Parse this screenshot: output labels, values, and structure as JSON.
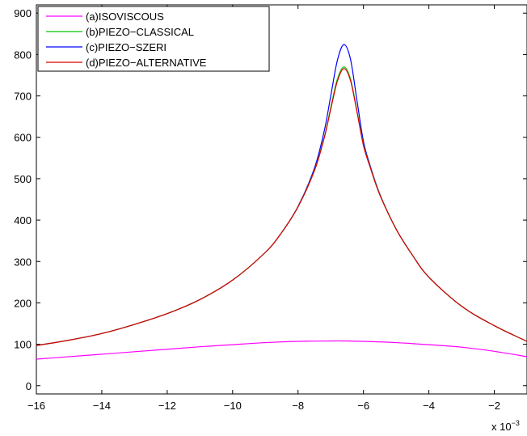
{
  "chart_data": {
    "type": "line",
    "xlim": [
      -16,
      -1
    ],
    "ylim": [
      -20,
      920
    ],
    "x_ticks": [
      -16,
      -14,
      -12,
      -10,
      -8,
      -6,
      -4,
      -2
    ],
    "y_ticks": [
      0,
      100,
      200,
      300,
      400,
      500,
      600,
      700,
      800,
      900
    ],
    "x_exponent_base": "x 10",
    "x_exponent_power": "−3",
    "grid": false,
    "legend_position": "top-left",
    "series": [
      {
        "name": "(a)ISOVISCOUS",
        "color": "#ff00ff",
        "x": [
          -16,
          -15,
          -14,
          -13,
          -12,
          -11,
          -10,
          -9,
          -8,
          -7,
          -6.6,
          -6,
          -5,
          -4,
          -3,
          -2,
          -1
        ],
        "y": [
          64,
          70,
          76,
          82,
          88,
          94,
          99,
          104,
          107,
          108,
          108,
          107,
          104,
          99,
          93,
          83,
          70
        ]
      },
      {
        "name": "(b)PIEZO−CLASSICAL",
        "color": "#00c800",
        "x": [
          -16,
          -15,
          -14,
          -13,
          -12,
          -11,
          -10,
          -9,
          -8.5,
          -8,
          -7.5,
          -7.2,
          -7,
          -6.8,
          -6.6,
          -6.4,
          -6.2,
          -6,
          -5.8,
          -5.5,
          -5,
          -4.5,
          -4,
          -3,
          -2,
          -1
        ],
        "y": [
          97,
          110,
          126,
          148,
          174,
          208,
          255,
          322,
          370,
          432,
          520,
          600,
          672,
          740,
          770,
          742,
          665,
          582,
          530,
          462,
          378,
          315,
          262,
          192,
          145,
          107
        ]
      },
      {
        "name": "(c)PIEZO−SZERI",
        "color": "#0000ff",
        "x": [
          -16,
          -15,
          -14,
          -13,
          -12,
          -11,
          -10,
          -9,
          -8.5,
          -8,
          -7.5,
          -7.2,
          -7,
          -6.8,
          -6.6,
          -6.4,
          -6.2,
          -6,
          -5.8,
          -5.5,
          -5,
          -4.5,
          -4,
          -3,
          -2,
          -1
        ],
        "y": [
          97,
          110,
          126,
          148,
          174,
          208,
          255,
          322,
          370,
          433,
          525,
          615,
          700,
          785,
          824,
          790,
          690,
          590,
          533,
          463,
          378,
          315,
          262,
          192,
          145,
          107
        ]
      },
      {
        "name": "(d)PIEZO−ALTERNATIVE",
        "color": "#e00000",
        "x": [
          -16,
          -15,
          -14,
          -13,
          -12,
          -11,
          -10,
          -9,
          -8.5,
          -8,
          -7.5,
          -7.2,
          -7,
          -6.8,
          -6.6,
          -6.4,
          -6.2,
          -6,
          -5.8,
          -5.5,
          -5,
          -4.5,
          -4,
          -3,
          -2,
          -1
        ],
        "y": [
          97,
          110,
          126,
          148,
          174,
          208,
          255,
          322,
          370,
          432,
          519,
          598,
          668,
          735,
          766,
          738,
          662,
          580,
          529,
          461,
          378,
          315,
          262,
          192,
          145,
          107
        ]
      }
    ]
  }
}
